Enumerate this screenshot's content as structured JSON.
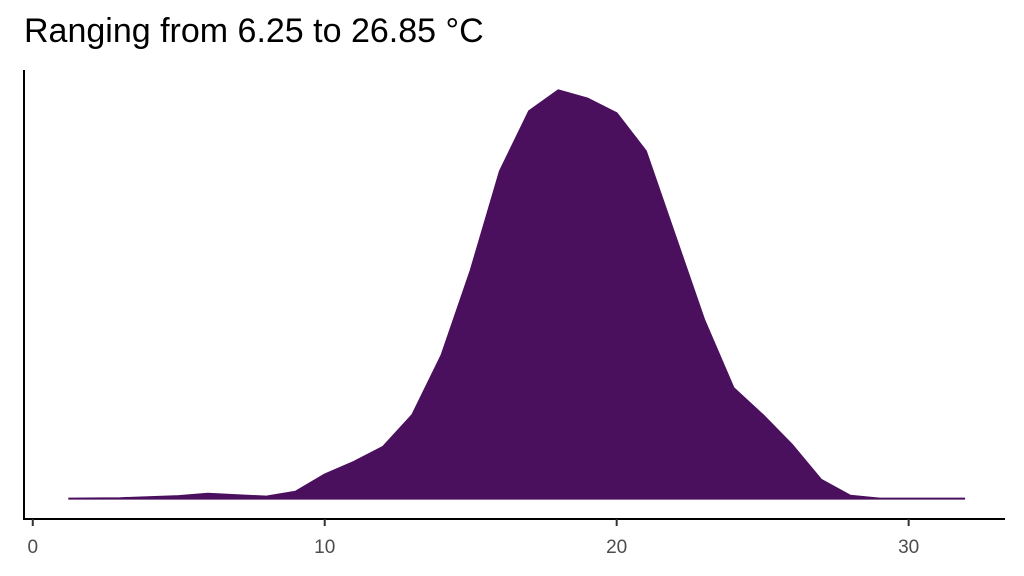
{
  "chart_data": {
    "type": "density",
    "title": "Ranging from 6.25 to 26.85 °C",
    "x": [
      1.25,
      3,
      5,
      6,
      7,
      8,
      9,
      10,
      11,
      12,
      13,
      14,
      15,
      16,
      17,
      18,
      19,
      20,
      21,
      22,
      23,
      24,
      25,
      26,
      27,
      28,
      29,
      30,
      31.9
    ],
    "values": [
      0,
      0.0001,
      0.0006,
      0.0012,
      0.0008,
      0.0005,
      0.0017,
      0.0059,
      0.009,
      0.0127,
      0.0205,
      0.0351,
      0.0559,
      0.0802,
      0.0949,
      0.1,
      0.098,
      0.0944,
      0.0851,
      0.0644,
      0.0437,
      0.0271,
      0.0205,
      0.0132,
      0.0046,
      0.0007,
      0,
      0,
      0
    ],
    "color": "#4a105e",
    "xlim": [
      -0.3,
      33.3
    ],
    "xticks": [
      0,
      10,
      20,
      30
    ],
    "ylim": [
      -0.005,
      0.105
    ]
  }
}
